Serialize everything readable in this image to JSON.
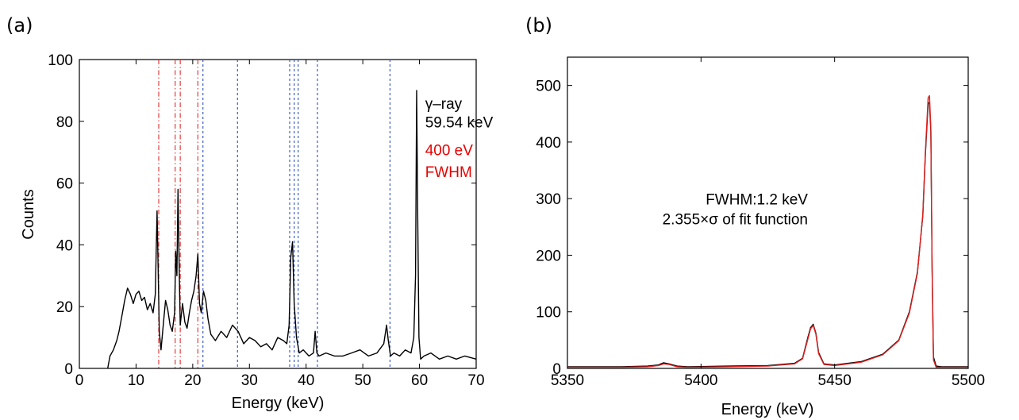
{
  "chart_data": [
    {
      "type": "line",
      "panel_label": "(a)",
      "xlabel": "Energy (keV)",
      "ylabel": "Counts",
      "xlim": [
        0,
        70
      ],
      "ylim": [
        0,
        100
      ],
      "xticks": [
        0,
        10,
        20,
        30,
        40,
        50,
        60,
        70
      ],
      "yticks": [
        0,
        20,
        40,
        60,
        80,
        100
      ],
      "grid": false,
      "series": [
        {
          "color": "#000000",
          "x": [
            5.0,
            5.4,
            6.0,
            6.6,
            7.0,
            7.5,
            8.0,
            8.5,
            9.0,
            9.5,
            10.0,
            10.5,
            11.0,
            11.5,
            12.0,
            12.5,
            13.0,
            13.4,
            13.7,
            13.9,
            14.1,
            14.4,
            14.8,
            15.2,
            15.6,
            16.0,
            16.4,
            16.8,
            17.0,
            17.2,
            17.4,
            17.6,
            17.8,
            18.2,
            18.6,
            19.0,
            19.4,
            19.8,
            20.2,
            20.6,
            20.9,
            21.2,
            21.5,
            21.9,
            22.3,
            22.7,
            23.2,
            24.0,
            25.0,
            26.0,
            27.0,
            28.0,
            29.0,
            30.0,
            31.0,
            32.0,
            33.0,
            34.0,
            35.0,
            36.0,
            36.6,
            37.0,
            37.3,
            37.6,
            37.9,
            38.3,
            38.8,
            39.5,
            40.5,
            41.3,
            41.6,
            41.9,
            42.3,
            43.5,
            45.0,
            46.5,
            48.0,
            49.5,
            51.0,
            52.5,
            53.7,
            54.2,
            54.5,
            54.9,
            55.5,
            56.5,
            57.5,
            58.5,
            59.0,
            59.3,
            59.5,
            59.7,
            59.9,
            60.2,
            60.8,
            62.0,
            63.5,
            65.0,
            66.5,
            68.0,
            70.0
          ],
          "y": [
            0,
            4,
            6,
            9,
            12,
            17,
            22,
            26,
            24,
            21,
            24,
            25,
            22,
            23,
            19,
            21,
            18,
            24,
            51,
            32,
            12,
            6,
            14,
            22,
            19,
            14,
            12,
            18,
            38,
            30,
            58,
            34,
            14,
            21,
            15,
            13,
            18,
            22,
            25,
            30,
            37,
            21,
            18,
            25,
            22,
            16,
            11,
            9,
            12,
            10,
            14,
            12,
            8,
            10,
            9,
            7,
            8,
            6,
            10,
            9,
            8,
            14,
            36,
            41,
            21,
            10,
            5,
            6,
            4,
            5,
            12,
            5,
            4,
            5,
            4,
            4,
            5,
            6,
            4,
            5,
            8,
            14,
            9,
            4,
            5,
            4,
            6,
            5,
            10,
            30,
            90,
            48,
            10,
            3,
            4,
            5,
            3,
            4,
            3,
            4,
            3
          ]
        }
      ],
      "reference_lines": {
        "red_dashdot": [
          14,
          16.9,
          17.8,
          20.9
        ],
        "blue_dashed": [
          21.8,
          27.9,
          37.1,
          37.9,
          38.6,
          42.0,
          54.8
        ]
      },
      "annotations": [
        {
          "text": "γ–ray",
          "x": 61,
          "y": 84,
          "color": "#000000"
        },
        {
          "text": "59.54 keV",
          "x": 61,
          "y": 78,
          "color": "#000000"
        },
        {
          "text": "400 eV",
          "x": 61,
          "y": 69,
          "color": "#e60000"
        },
        {
          "text": "FWHM",
          "x": 61,
          "y": 62,
          "color": "#e60000"
        }
      ]
    },
    {
      "type": "line",
      "panel_label": "(b)",
      "xlabel": "Energy (keV)",
      "ylabel": "",
      "xlim": [
        5350,
        5500
      ],
      "ylim": [
        0,
        550
      ],
      "xticks": [
        5350,
        5400,
        5450,
        5500
      ],
      "yticks": [
        0,
        100,
        200,
        300,
        400,
        500
      ],
      "grid": false,
      "series": [
        {
          "color": "#000000",
          "x": [
            5350,
            5370,
            5380,
            5384,
            5386,
            5388,
            5391,
            5395,
            5410,
            5425,
            5435,
            5438,
            5440,
            5441,
            5442,
            5443,
            5444,
            5446,
            5450,
            5460,
            5468,
            5474,
            5478,
            5481,
            5483,
            5484,
            5485,
            5485.5,
            5486,
            5486.5,
            5487,
            5488,
            5490,
            5500
          ],
          "y": [
            3,
            3,
            4,
            6,
            10,
            8,
            4,
            3,
            4,
            5,
            9,
            18,
            55,
            72,
            78,
            62,
            28,
            8,
            6,
            12,
            25,
            50,
            100,
            170,
            270,
            380,
            468,
            470,
            420,
            180,
            20,
            4,
            3,
            3
          ]
        },
        {
          "color": "#e02020",
          "x": [
            5350,
            5370,
            5380,
            5384,
            5386,
            5388,
            5391,
            5395,
            5410,
            5425,
            5435,
            5438,
            5440,
            5441,
            5442,
            5443,
            5444,
            5446,
            5450,
            5460,
            5468,
            5474,
            5478,
            5481,
            5483,
            5484,
            5485,
            5485.5,
            5486,
            5486.5,
            5487,
            5488,
            5490,
            5500
          ],
          "y": [
            2,
            2,
            3,
            5,
            8,
            7,
            3,
            2,
            3,
            4,
            8,
            17,
            52,
            70,
            76,
            60,
            26,
            7,
            5,
            11,
            24,
            49,
            98,
            168,
            272,
            385,
            478,
            482,
            425,
            175,
            15,
            2,
            2,
            2
          ]
        }
      ],
      "annotations": [
        {
          "text": "FWHM:1.2 keV",
          "x": 5440,
          "y": 290,
          "color": "#000000"
        },
        {
          "text": "2.355×σ of fit function",
          "x": 5440,
          "y": 255,
          "color": "#000000"
        }
      ]
    }
  ]
}
